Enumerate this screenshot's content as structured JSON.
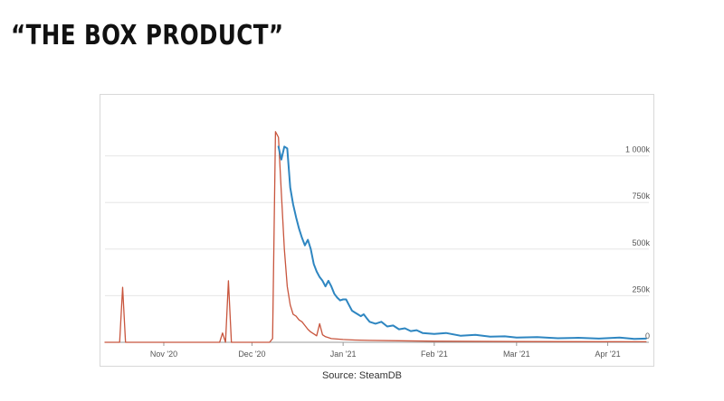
{
  "slide": {
    "title": "“THE BOX PRODUCT”",
    "caption": "Source: SteamDB"
  },
  "chart_data": {
    "type": "line",
    "title": "",
    "xlabel": "",
    "ylabel": "",
    "x_axis": {
      "type": "date",
      "range": [
        "2020-10-12",
        "2021-04-15"
      ],
      "ticks": [
        {
          "label": "Nov '20",
          "date": "2020-11-01"
        },
        {
          "label": "Dec '20",
          "date": "2020-12-01"
        },
        {
          "label": "Jan '21",
          "date": "2021-01-01"
        },
        {
          "label": "Feb '21",
          "date": "2021-02-01"
        },
        {
          "label": "Mar '21",
          "date": "2021-03-01"
        },
        {
          "label": "Apr '21",
          "date": "2021-04-01"
        }
      ]
    },
    "y_axis": {
      "position": "right",
      "range": [
        0,
        1250000
      ],
      "ticks": [
        {
          "label": "0",
          "value": 0
        },
        {
          "label": "250k",
          "value": 250000
        },
        {
          "label": "500k",
          "value": 500000
        },
        {
          "label": "750k",
          "value": 750000
        },
        {
          "label": "1 000k",
          "value": 1000000
        }
      ]
    },
    "grid": true,
    "legend": "none",
    "series": [
      {
        "color": "#2e86c1",
        "points": [
          [
            "2020-12-10",
            1050000
          ],
          [
            "2020-12-11",
            980000
          ],
          [
            "2020-12-12",
            1050000
          ],
          [
            "2020-12-13",
            1040000
          ],
          [
            "2020-12-14",
            830000
          ],
          [
            "2020-12-15",
            740000
          ],
          [
            "2020-12-16",
            670000
          ],
          [
            "2020-12-17",
            610000
          ],
          [
            "2020-12-18",
            560000
          ],
          [
            "2020-12-19",
            520000
          ],
          [
            "2020-12-20",
            550000
          ],
          [
            "2020-12-21",
            500000
          ],
          [
            "2020-12-22",
            420000
          ],
          [
            "2020-12-23",
            380000
          ],
          [
            "2020-12-24",
            350000
          ],
          [
            "2020-12-25",
            330000
          ],
          [
            "2020-12-26",
            300000
          ],
          [
            "2020-12-27",
            330000
          ],
          [
            "2020-12-28",
            300000
          ],
          [
            "2020-12-29",
            260000
          ],
          [
            "2020-12-30",
            240000
          ],
          [
            "2020-12-31",
            225000
          ],
          [
            "2021-01-01",
            230000
          ],
          [
            "2021-01-02",
            230000
          ],
          [
            "2021-01-03",
            200000
          ],
          [
            "2021-01-04",
            170000
          ],
          [
            "2021-01-05",
            160000
          ],
          [
            "2021-01-06",
            150000
          ],
          [
            "2021-01-07",
            140000
          ],
          [
            "2021-01-08",
            150000
          ],
          [
            "2021-01-09",
            130000
          ],
          [
            "2021-01-10",
            110000
          ],
          [
            "2021-01-12",
            100000
          ],
          [
            "2021-01-14",
            110000
          ],
          [
            "2021-01-16",
            85000
          ],
          [
            "2021-01-18",
            90000
          ],
          [
            "2021-01-20",
            70000
          ],
          [
            "2021-01-22",
            75000
          ],
          [
            "2021-01-24",
            60000
          ],
          [
            "2021-01-26",
            65000
          ],
          [
            "2021-01-28",
            50000
          ],
          [
            "2021-02-01",
            45000
          ],
          [
            "2021-02-05",
            50000
          ],
          [
            "2021-02-10",
            35000
          ],
          [
            "2021-02-15",
            40000
          ],
          [
            "2021-02-20",
            30000
          ],
          [
            "2021-02-25",
            32000
          ],
          [
            "2021-03-01",
            25000
          ],
          [
            "2021-03-08",
            28000
          ],
          [
            "2021-03-15",
            22000
          ],
          [
            "2021-03-22",
            24000
          ],
          [
            "2021-03-29",
            20000
          ],
          [
            "2021-04-05",
            25000
          ],
          [
            "2021-04-10",
            18000
          ],
          [
            "2021-04-14",
            20000
          ]
        ]
      },
      {
        "color": "#c8553d",
        "points": [
          [
            "2020-10-12",
            0
          ],
          [
            "2020-10-17",
            0
          ],
          [
            "2020-10-18",
            295000
          ],
          [
            "2020-10-19",
            0
          ],
          [
            "2020-11-01",
            0
          ],
          [
            "2020-11-20",
            0
          ],
          [
            "2020-11-21",
            50000
          ],
          [
            "2020-11-22",
            0
          ],
          [
            "2020-11-23",
            330000
          ],
          [
            "2020-11-24",
            0
          ],
          [
            "2020-12-07",
            0
          ],
          [
            "2020-12-08",
            20000
          ],
          [
            "2020-12-09",
            1130000
          ],
          [
            "2020-12-10",
            1100000
          ],
          [
            "2020-12-11",
            800000
          ],
          [
            "2020-12-12",
            500000
          ],
          [
            "2020-12-13",
            300000
          ],
          [
            "2020-12-14",
            200000
          ],
          [
            "2020-12-15",
            150000
          ],
          [
            "2020-12-16",
            140000
          ],
          [
            "2020-12-17",
            120000
          ],
          [
            "2020-12-18",
            110000
          ],
          [
            "2020-12-19",
            90000
          ],
          [
            "2020-12-20",
            70000
          ],
          [
            "2020-12-21",
            55000
          ],
          [
            "2020-12-22",
            45000
          ],
          [
            "2020-12-23",
            35000
          ],
          [
            "2020-12-24",
            100000
          ],
          [
            "2020-12-25",
            40000
          ],
          [
            "2020-12-26",
            30000
          ],
          [
            "2020-12-28",
            20000
          ],
          [
            "2021-01-01",
            15000
          ],
          [
            "2021-01-05",
            12000
          ],
          [
            "2021-01-10",
            10000
          ],
          [
            "2021-01-20",
            8000
          ],
          [
            "2021-02-01",
            6000
          ],
          [
            "2021-03-01",
            4000
          ],
          [
            "2021-04-14",
            3000
          ]
        ]
      }
    ]
  }
}
